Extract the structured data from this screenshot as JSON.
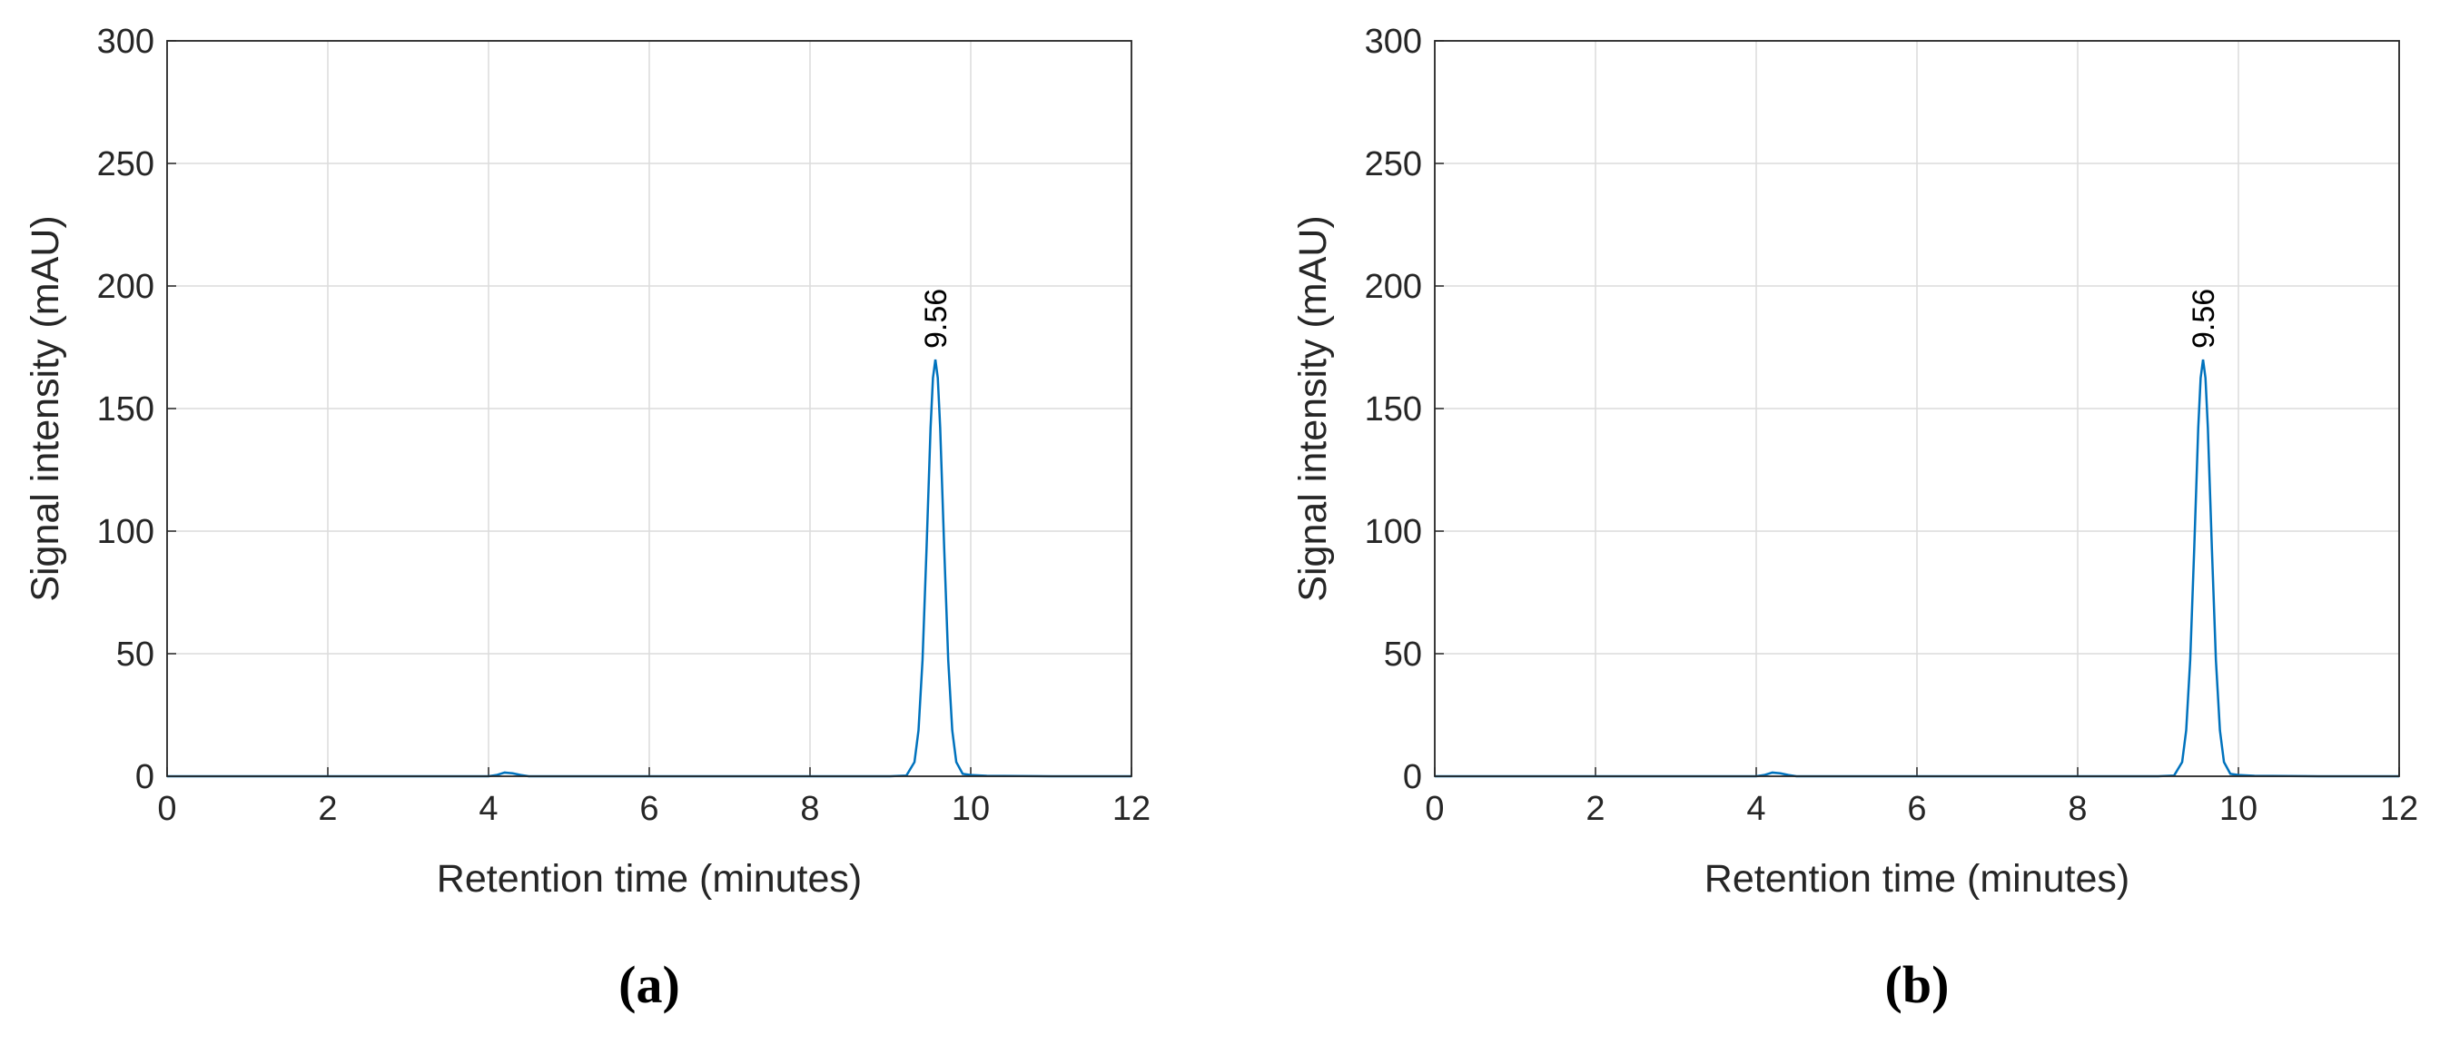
{
  "chart_data": [
    {
      "type": "line",
      "caption": "(a)",
      "xlabel": "Retention time (minutes)",
      "ylabel": "Signal intensity (mAU)",
      "xlim": [
        0,
        12
      ],
      "ylim": [
        0,
        300
      ],
      "xticks": [
        0,
        2,
        4,
        6,
        8,
        10,
        12
      ],
      "yticks": [
        0,
        50,
        100,
        150,
        200,
        250,
        300
      ],
      "grid": true,
      "x": [
        0,
        1,
        2,
        3,
        4,
        4.1,
        4.2,
        4.3,
        4.4,
        4.5,
        5,
        6,
        7,
        8,
        9,
        9.2,
        9.3,
        9.35,
        9.4,
        9.45,
        9.5,
        9.53,
        9.56,
        9.59,
        9.62,
        9.67,
        9.72,
        9.77,
        9.82,
        9.9,
        10,
        10.2,
        11,
        12
      ],
      "series": [
        {
          "color": "#0072bd",
          "values": [
            0,
            0,
            0,
            0,
            0,
            0.5,
            1.5,
            1.2,
            0.5,
            0,
            0,
            0,
            0,
            0,
            0,
            0.3,
            5.8,
            18.7,
            47.3,
            92.8,
            142,
            162.5,
            170,
            162.5,
            142,
            92.8,
            47.3,
            18.7,
            5.8,
            1,
            0.5,
            0.2,
            0,
            0
          ]
        }
      ],
      "annotation": {
        "text": "9.56",
        "x": 9.56,
        "y": 170
      }
    },
    {
      "type": "line",
      "caption": "(b)",
      "xlabel": "Retention time (minutes)",
      "ylabel": "Signal intensity (mAU)",
      "xlim": [
        0,
        12
      ],
      "ylim": [
        0,
        300
      ],
      "xticks": [
        0,
        2,
        4,
        6,
        8,
        10,
        12
      ],
      "yticks": [
        0,
        50,
        100,
        150,
        200,
        250,
        300
      ],
      "grid": true,
      "x": [
        0,
        1,
        2,
        3,
        4,
        4.1,
        4.2,
        4.3,
        4.4,
        4.5,
        5,
        6,
        7,
        8,
        9,
        9.2,
        9.3,
        9.35,
        9.4,
        9.45,
        9.5,
        9.53,
        9.56,
        9.59,
        9.62,
        9.67,
        9.72,
        9.77,
        9.82,
        9.9,
        10,
        10.2,
        11,
        12
      ],
      "series": [
        {
          "color": "#0072bd",
          "values": [
            0,
            0,
            0,
            0,
            0,
            0.5,
            1.5,
            1.2,
            0.5,
            0,
            0,
            0,
            0,
            0,
            0,
            0.3,
            5.8,
            18.7,
            47.3,
            92.8,
            142,
            162.5,
            170,
            162.5,
            142,
            92.8,
            47.3,
            18.7,
            5.8,
            1,
            0.5,
            0.2,
            0,
            0
          ]
        }
      ],
      "annotation": {
        "text": "9.56",
        "x": 9.56,
        "y": 170
      }
    }
  ]
}
